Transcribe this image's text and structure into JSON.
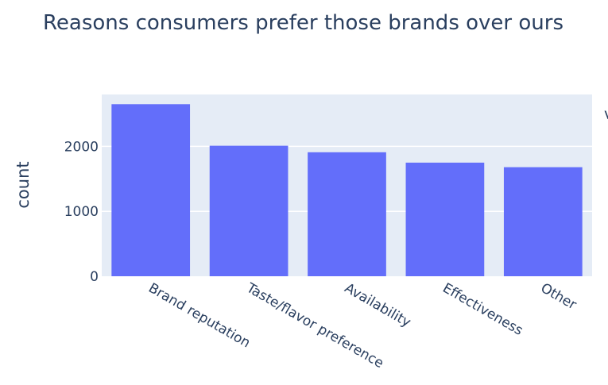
{
  "chart_data": {
    "type": "bar",
    "title": "Reasons consumers prefer those brands over ours",
    "xlabel": "",
    "ylabel": "count",
    "categories": [
      "Brand reputation",
      "Taste/flavor preference",
      "Availability",
      "Effectiveness",
      "Other"
    ],
    "values": [
      2650,
      2010,
      1910,
      1750,
      1680
    ],
    "ylim": [
      0,
      2800
    ],
    "yticks": [
      0,
      1000,
      2000
    ],
    "grid": true,
    "colors": {
      "bar": "#636efa",
      "plot_bg": "#e5ecf6",
      "text": "#2a3f5f",
      "grid": "#ffffff"
    },
    "truncated_label": "v"
  }
}
